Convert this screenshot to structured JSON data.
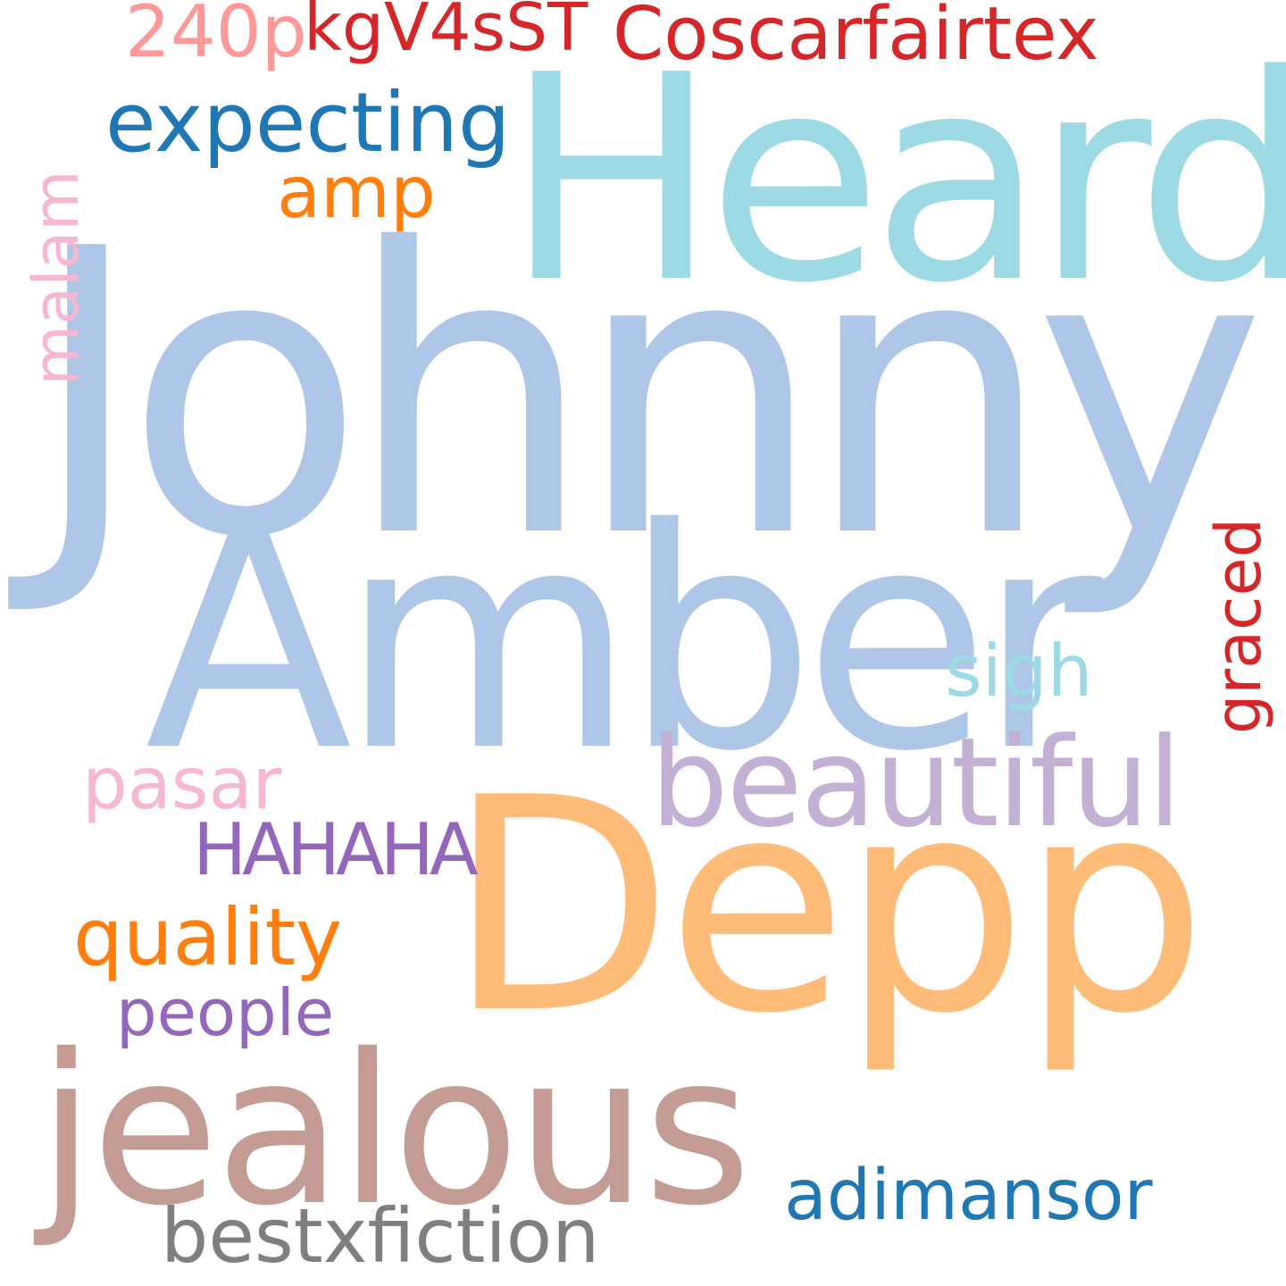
{
  "wordcloud": {
    "words": {
      "johnny": {
        "text": "Johnny",
        "color": "#aec7e8"
      },
      "heard": {
        "text": "Heard",
        "color": "#9edae5"
      },
      "amber": {
        "text": "Amber",
        "color": "#aec7e8"
      },
      "depp": {
        "text": "Depp",
        "color": "#ffbb78"
      },
      "jealous": {
        "text": "jealous",
        "color": "#c49c94"
      },
      "beautiful": {
        "text": "beautiful",
        "color": "#c5b0d5"
      },
      "coscar": {
        "text": "Coscarfairtex",
        "color": "#d62728"
      },
      "p240": {
        "text": "240p",
        "color": "#ff9896"
      },
      "kgv": {
        "text": "kgV4sST",
        "color": "#d62728"
      },
      "expecting": {
        "text": "expecting",
        "color": "#1f77b4"
      },
      "amp": {
        "text": "amp",
        "color": "#ff7f0e"
      },
      "sigh": {
        "text": "sigh",
        "color": "#9edae5"
      },
      "pasar": {
        "text": "pasar",
        "color": "#f7b6d2"
      },
      "hahaha": {
        "text": "HAHAHA",
        "color": "#9467bd"
      },
      "quality": {
        "text": "quality",
        "color": "#ff7f0e"
      },
      "people": {
        "text": "people",
        "color": "#9467bd"
      },
      "adimansor": {
        "text": "adimansor",
        "color": "#1f77b4"
      },
      "bestx": {
        "text": "bestxfiction",
        "color": "#7f7f7f"
      },
      "malam": {
        "text": "malam",
        "color": "#f7b6d2"
      },
      "graced": {
        "text": "graced",
        "color": "#d62728"
      }
    }
  }
}
